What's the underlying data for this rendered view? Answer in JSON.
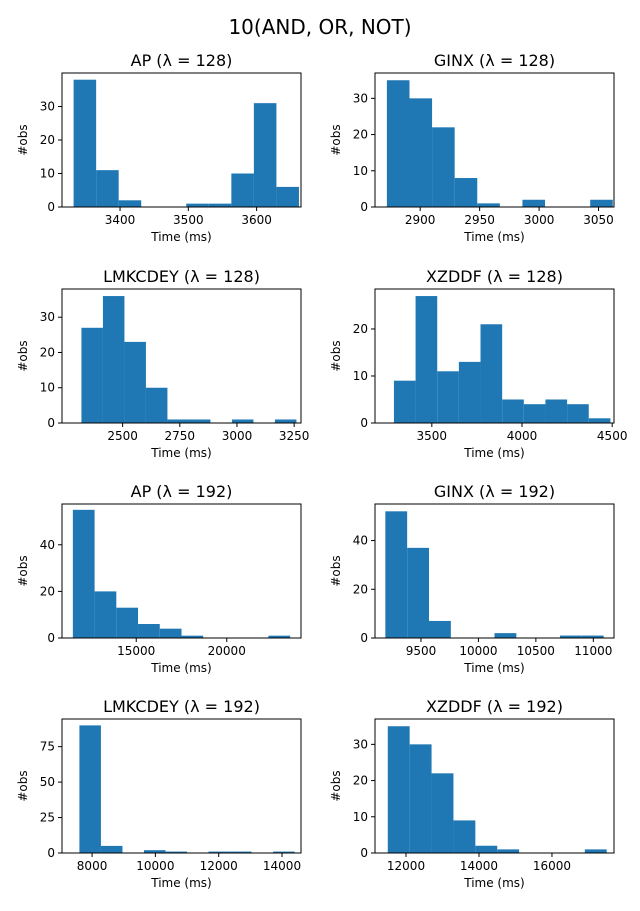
{
  "suptitle": "10(AND, OR, NOT)",
  "chart_data": [
    {
      "type": "bar",
      "title": "AP ($\\lambda = 128$)",
      "title_text": "AP (λ = 128)",
      "xlabel": "Time (ms)",
      "ylabel": "#obs",
      "xlim": [
        3315,
        3665
      ],
      "ylim": [
        0,
        40
      ],
      "xticks": [
        3400,
        3500,
        3600
      ],
      "yticks": [
        0,
        10,
        20,
        30
      ],
      "bins": [
        3332,
        3365,
        3398,
        3431,
        3464,
        3497,
        3530,
        3563,
        3596,
        3629,
        3662
      ],
      "counts": [
        38,
        11,
        2,
        0,
        0,
        1,
        1,
        10,
        31,
        6
      ]
    },
    {
      "type": "bar",
      "title": "GINX ($\\lambda = 128$)",
      "title_text": "GINX (λ = 128)",
      "xlabel": "Time (ms)",
      "ylabel": "#obs",
      "xlim": [
        2862,
        3063
      ],
      "ylim": [
        0,
        37
      ],
      "xticks": [
        2900,
        2950,
        3000,
        3050
      ],
      "yticks": [
        0,
        10,
        20,
        30
      ],
      "bins": [
        2872,
        2891,
        2910,
        2929,
        2948,
        2967,
        2986,
        3005,
        3024,
        3043,
        3062
      ],
      "counts": [
        35,
        30,
        22,
        8,
        1,
        0,
        2,
        0,
        0,
        2
      ]
    },
    {
      "type": "bar",
      "title": "LMKCDEY ($\\lambda = 128$)",
      "title_text": "LMKCDEY (λ = 128)",
      "xlabel": "Time (ms)",
      "ylabel": "#obs",
      "xlim": [
        2235,
        3280
      ],
      "ylim": [
        0,
        38
      ],
      "xticks": [
        2500,
        2750,
        3000,
        3250
      ],
      "yticks": [
        0,
        10,
        20,
        30
      ],
      "bins": [
        2320,
        2414,
        2508,
        2602,
        2696,
        2790,
        2884,
        2978,
        3072,
        3166,
        3260
      ],
      "counts": [
        27,
        36,
        23,
        10,
        1,
        1,
        0,
        1,
        0,
        1
      ]
    },
    {
      "type": "bar",
      "title": "XZDDF ($\\lambda = 128$)",
      "title_text": "XZDDF (λ = 128)",
      "xlabel": "Time (ms)",
      "ylabel": "#obs",
      "xlim": [
        3185,
        4510
      ],
      "ylim": [
        0,
        28.5
      ],
      "xticks": [
        3500,
        4000,
        4500
      ],
      "yticks": [
        0,
        10,
        20
      ],
      "bins": [
        3290,
        3410,
        3530,
        3650,
        3770,
        3890,
        4010,
        4130,
        4250,
        4370,
        4490
      ],
      "counts": [
        9,
        27,
        11,
        13,
        21,
        5,
        4,
        5,
        4,
        1
      ]
    },
    {
      "type": "bar",
      "title": "AP ($\\lambda = 192$)",
      "title_text": "AP (λ = 192)",
      "xlabel": "Time (ms)",
      "ylabel": "#obs",
      "xlim": [
        10900,
        24100
      ],
      "ylim": [
        0,
        57.5
      ],
      "xticks": [
        15000,
        20000
      ],
      "yticks": [
        0,
        20,
        40
      ],
      "bins": [
        11500,
        12700,
        13900,
        15100,
        16300,
        17500,
        18700,
        19900,
        21100,
        22300,
        23500
      ],
      "counts": [
        55,
        20,
        13,
        6,
        4,
        1,
        0,
        0,
        0,
        1
      ]
    },
    {
      "type": "bar",
      "title": "GINX ($\\lambda = 192$)",
      "title_text": "GINX (λ = 192)",
      "xlabel": "Time (ms)",
      "ylabel": "#obs",
      "xlim": [
        9100,
        11180
      ],
      "ylim": [
        0,
        55
      ],
      "xticks": [
        9500,
        10000,
        10500,
        11000
      ],
      "yticks": [
        0,
        20,
        40
      ],
      "bins": [
        9190,
        9380,
        9570,
        9760,
        9950,
        10140,
        10330,
        10520,
        10710,
        10900,
        11090
      ],
      "counts": [
        52,
        37,
        7,
        0,
        0,
        2,
        0,
        0,
        1,
        1
      ]
    },
    {
      "type": "bar",
      "title": "LMKCDEY ($\\lambda = 192$)",
      "title_text": "LMKCDEY (λ = 192)",
      "xlabel": "Time (ms)",
      "ylabel": "#obs",
      "xlim": [
        7050,
        14600
      ],
      "ylim": [
        0,
        94.5
      ],
      "xticks": [
        8000,
        10000,
        12000,
        14000
      ],
      "yticks": [
        0,
        25,
        50,
        75
      ],
      "bins": [
        7600,
        8280,
        8960,
        9640,
        10320,
        11000,
        11680,
        12360,
        13040,
        13720,
        14400
      ],
      "counts": [
        90,
        5,
        0,
        2,
        1,
        0,
        1,
        1,
        0,
        1
      ]
    },
    {
      "type": "bar",
      "title": "XZDDF ($\\lambda = 192$)",
      "title_text": "XZDDF (λ = 192)",
      "xlabel": "Time (ms)",
      "ylabel": "#obs",
      "xlim": [
        11150,
        17700
      ],
      "ylim": [
        0,
        37
      ],
      "xticks": [
        12000,
        14000,
        16000
      ],
      "yticks": [
        0,
        10,
        20,
        30
      ],
      "bins": [
        11500,
        12100,
        12700,
        13300,
        13900,
        14500,
        15100,
        15700,
        16300,
        16900,
        17500
      ],
      "counts": [
        35,
        30,
        22,
        9,
        2,
        1,
        0,
        0,
        0,
        1
      ]
    }
  ]
}
